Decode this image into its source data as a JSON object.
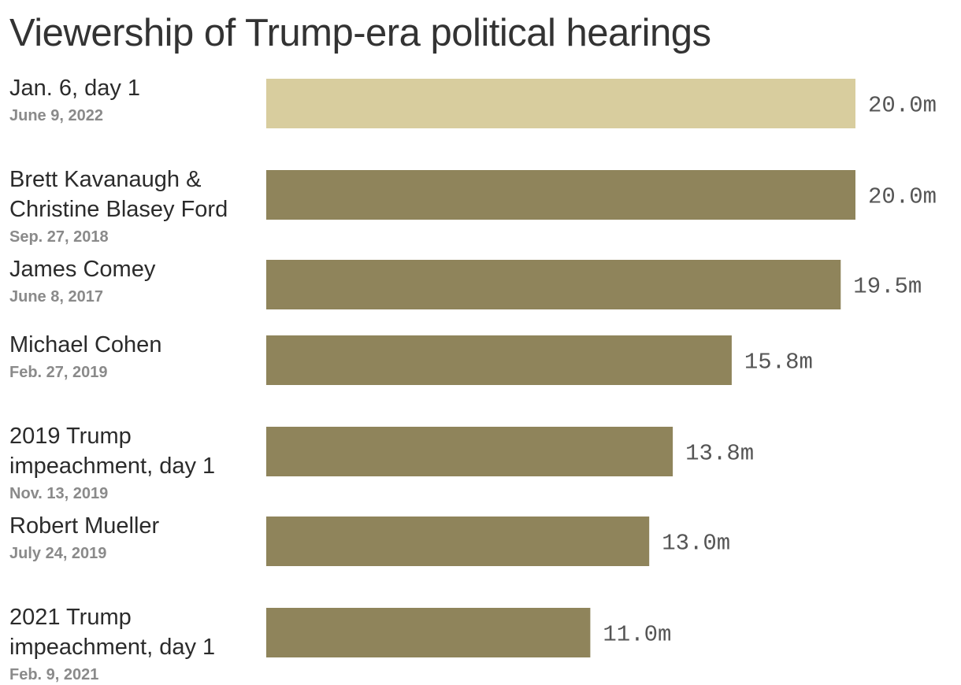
{
  "chart_data": {
    "type": "bar",
    "orientation": "horizontal",
    "title": "Viewership of Trump-era political hearings",
    "value_suffix": "m",
    "categories": [
      [
        "Jan. 6, day 1"
      ],
      [
        "Brett Kavanaugh &",
        "Christine Blasey Ford"
      ],
      [
        "James Comey"
      ],
      [
        "Michael Cohen"
      ],
      [
        "2019 Trump",
        "impeachment, day 1"
      ],
      [
        "Robert Mueller"
      ],
      [
        "2021 Trump",
        "impeachment, day 1"
      ]
    ],
    "dates": [
      "June 9, 2022",
      "Sep. 27, 2018",
      "June 8, 2017",
      "Feb. 27, 2019",
      "Nov. 13, 2019",
      "July 24, 2019",
      "Feb. 9, 2021"
    ],
    "values": [
      20.0,
      20.0,
      19.5,
      15.8,
      13.8,
      13.0,
      11.0
    ],
    "value_labels": [
      "20.0m",
      "20.0m",
      "19.5m",
      "15.8m",
      "13.8m",
      "13.0m",
      "11.0m"
    ],
    "xlim": [
      0,
      20
    ],
    "colors": {
      "highlight": "#d8cd9e",
      "bar": "#8f845b",
      "title": "#333333",
      "label": "#2b2b2b",
      "date": "#8a8a8a",
      "value": "#555555"
    }
  }
}
